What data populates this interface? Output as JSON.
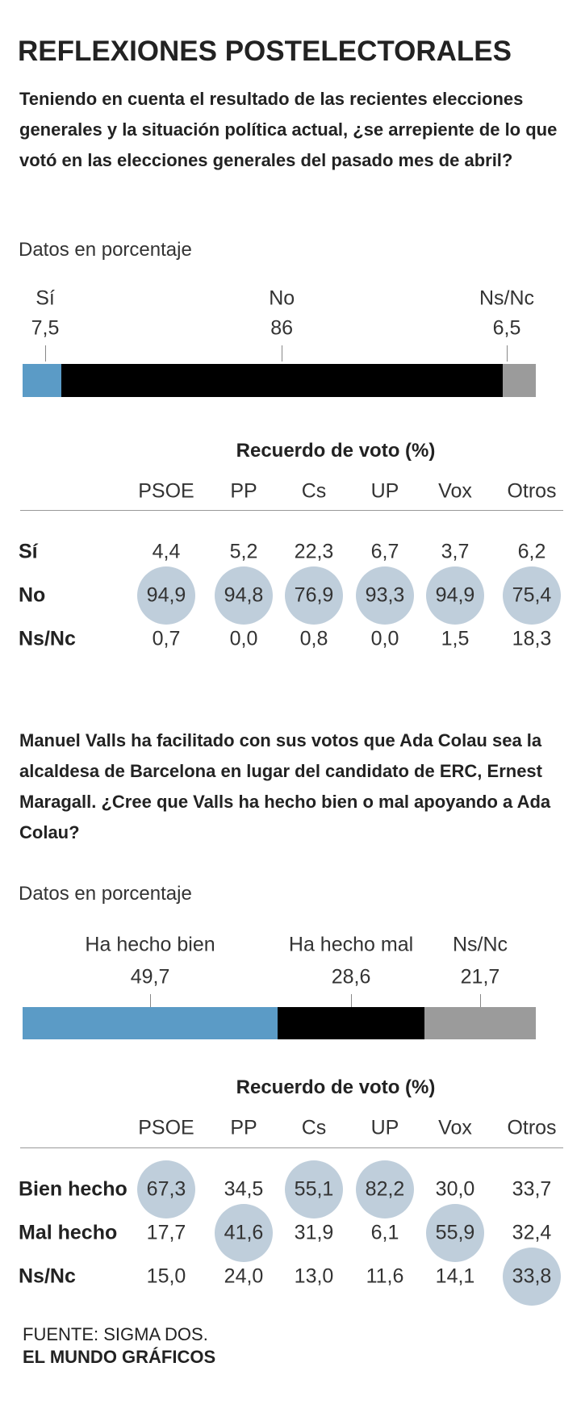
{
  "title": "REFLEXIONES POSTELECTORALES",
  "chart_data": [
    {
      "type": "bar",
      "stacked": true,
      "orientation": "horizontal",
      "title": "Teniendo en cuenta el resultado de las recientes elecciones generales y la situación política actual, ¿se arrepiente de lo que votó en las elecciones generales del pasado mes de abril?",
      "subtitle": "Datos en porcentaje",
      "categories": [
        "Sí",
        "No",
        "Ns/Nc"
      ],
      "values": [
        7.5,
        86,
        6.5
      ],
      "value_labels": [
        "7,5",
        "86",
        "6,5"
      ],
      "colors": [
        "#5b9bc6",
        "#000000",
        "#9b9b9b"
      ],
      "xlim": [
        0,
        100
      ]
    },
    {
      "type": "bar",
      "stacked": true,
      "orientation": "horizontal",
      "title": "Manuel Valls ha facilitado con sus votos que Ada Colau sea la alcaldesa de Barcelona en lugar del candidato de ERC, Ernest Maragall. ¿Cree que Valls ha hecho bien o mal apoyando a Ada Colau?",
      "subtitle": "Datos en porcentaje",
      "categories": [
        "Ha hecho bien",
        "Ha hecho mal",
        "Ns/Nc"
      ],
      "values": [
        49.7,
        28.6,
        21.7
      ],
      "value_labels": [
        "49,7",
        "28,6",
        "21,7"
      ],
      "colors": [
        "#5b9bc6",
        "#000000",
        "#9b9b9b"
      ],
      "xlim": [
        0,
        100
      ]
    }
  ],
  "tables": [
    {
      "title": "Recuerdo de voto (%)",
      "columns": [
        "PSOE",
        "PP",
        "Cs",
        "UP",
        "Vox",
        "Otros"
      ],
      "highlight_color": "#bfcedb",
      "rows": [
        {
          "label": "Sí",
          "cells": [
            "4,4",
            "5,2",
            "22,3",
            "6,7",
            "3,7",
            "6,2"
          ],
          "highlight": [
            false,
            false,
            false,
            false,
            false,
            false
          ]
        },
        {
          "label": "No",
          "cells": [
            "94,9",
            "94,8",
            "76,9",
            "93,3",
            "94,9",
            "75,4"
          ],
          "highlight": [
            true,
            true,
            true,
            true,
            true,
            true
          ]
        },
        {
          "label": "Ns/Nc",
          "cells": [
            "0,7",
            "0,0",
            "0,8",
            "0,0",
            "1,5",
            "18,3"
          ],
          "highlight": [
            false,
            false,
            false,
            false,
            false,
            false
          ]
        }
      ]
    },
    {
      "title": "Recuerdo de voto (%)",
      "columns": [
        "PSOE",
        "PP",
        "Cs",
        "UP",
        "Vox",
        "Otros"
      ],
      "highlight_color": "#bfcedb",
      "rows": [
        {
          "label": "Bien hecho",
          "cells": [
            "67,3",
            "34,5",
            "55,1",
            "82,2",
            "30,0",
            "33,7"
          ],
          "highlight": [
            true,
            false,
            true,
            true,
            false,
            false
          ]
        },
        {
          "label": "Mal hecho",
          "cells": [
            "17,7",
            "41,6",
            "31,9",
            "6,1",
            "55,9",
            "32,4"
          ],
          "highlight": [
            false,
            true,
            false,
            false,
            true,
            false
          ]
        },
        {
          "label": "Ns/Nc",
          "cells": [
            "15,0",
            "24,0",
            "13,0",
            "11,6",
            "14,1",
            "33,8"
          ],
          "highlight": [
            false,
            false,
            false,
            false,
            false,
            true
          ]
        }
      ]
    }
  ],
  "source": [
    "FUENTE: SIGMA DOS.",
    "EL MUNDO GRÁFICOS"
  ]
}
